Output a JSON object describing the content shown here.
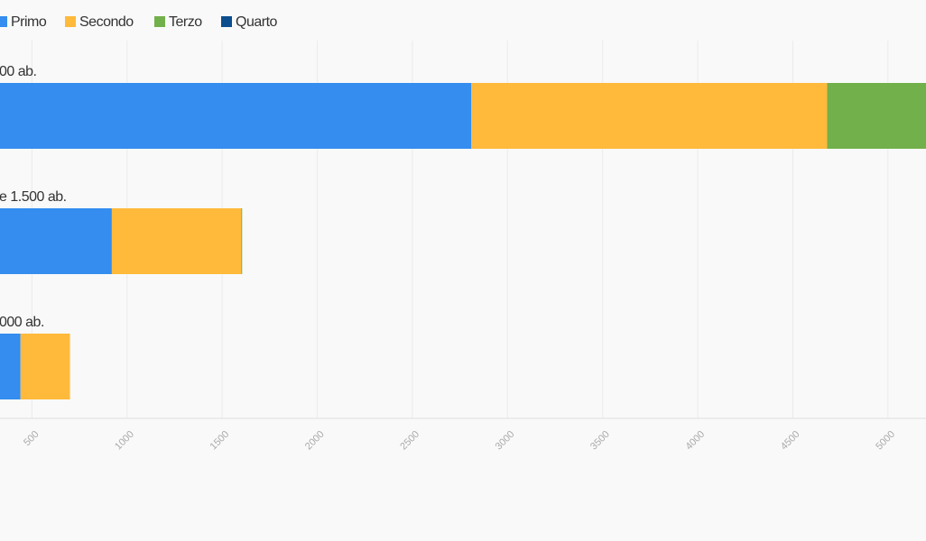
{
  "chart_data": {
    "type": "stacked-bar-horizontal",
    "categories": [
      "00 ab.",
      "e 1.500 ab.",
      "000 ab."
    ],
    "series": [
      {
        "name": "Primo",
        "color": "#348def",
        "values": [
          2810,
          920,
          440
        ]
      },
      {
        "name": "Secondo",
        "color": "#ffb93b",
        "values": [
          1870,
          680,
          260
        ]
      },
      {
        "name": "Terzo",
        "color": "#72b04b",
        "values": [
          600,
          5,
          0
        ]
      },
      {
        "name": "Quarto",
        "color": "#0c4e8e",
        "values": [
          0,
          0,
          0
        ]
      }
    ],
    "xlim": [
      0,
      5200
    ],
    "xticks": [
      500,
      1000,
      1500,
      2000,
      2500,
      3000,
      3500,
      4000,
      4500,
      5000
    ],
    "grid": true,
    "legend": "top-left"
  }
}
